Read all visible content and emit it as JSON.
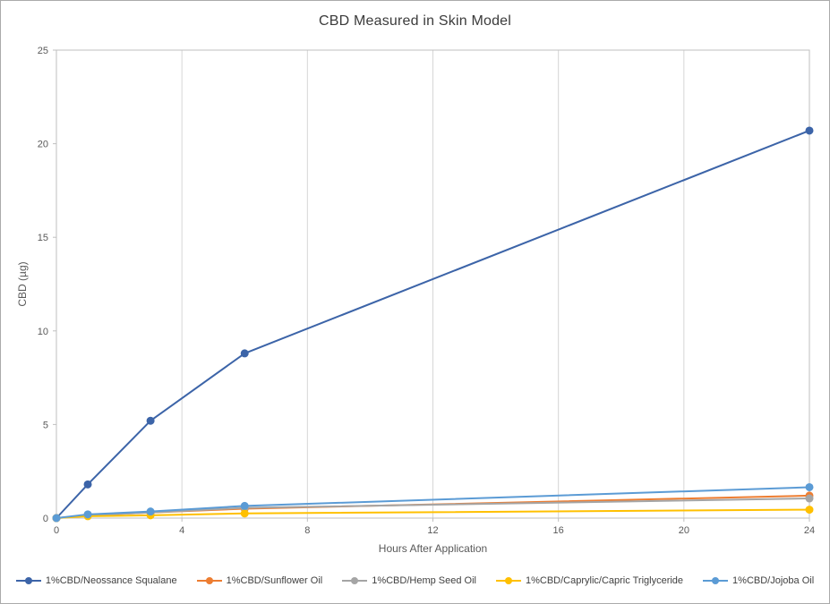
{
  "chart_data": {
    "type": "line",
    "title": "CBD Measured in Skin Model",
    "xlabel": "Hours After Application",
    "ylabel": "CBD (µg)",
    "xlim": [
      0,
      24
    ],
    "ylim": [
      0,
      25
    ],
    "xticks": [
      0,
      4,
      8,
      12,
      16,
      20,
      24
    ],
    "yticks": [
      0,
      5,
      10,
      15,
      20,
      25
    ],
    "grid": "vertical-only",
    "legend_position": "bottom",
    "x": [
      0,
      1,
      3,
      6,
      24
    ],
    "series": [
      {
        "name": "1%CBD/Neossance Squalane",
        "color": "#3C64A8",
        "values": [
          0,
          1.8,
          5.2,
          8.8,
          20.7
        ]
      },
      {
        "name": "1%CBD/Sunflower Oil",
        "color": "#ED7D31",
        "values": [
          0,
          0.15,
          0.3,
          0.5,
          1.2
        ]
      },
      {
        "name": "1%CBD/Hemp Seed Oil",
        "color": "#A5A5A5",
        "values": [
          0,
          0.15,
          0.3,
          0.55,
          1.05
        ]
      },
      {
        "name": "1%CBD/Caprylic/Capric Triglyceride",
        "color": "#FFC000",
        "values": [
          0,
          0.1,
          0.15,
          0.25,
          0.45
        ]
      },
      {
        "name": "1%CBD/Jojoba Oil",
        "color": "#5B9BD5",
        "values": [
          0,
          0.2,
          0.35,
          0.65,
          1.65
        ]
      }
    ],
    "colors": {
      "gridline": "#d6d6d6",
      "plot_border": "#bfbfbf",
      "tick_label": "#595959",
      "axis_title": "#595959",
      "title": "#3b3b3b"
    }
  }
}
